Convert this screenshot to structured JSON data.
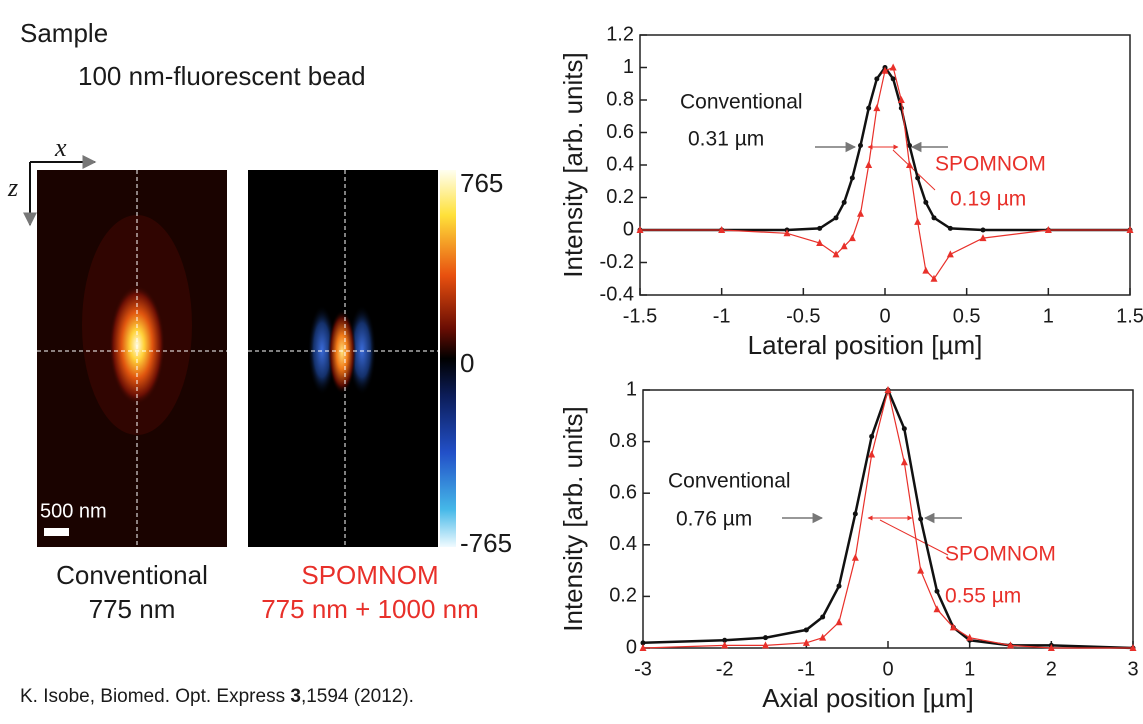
{
  "sample_title": "Sample",
  "sample_desc": "100 nm-fluorescent bead",
  "axis_x": "x",
  "axis_z": "z",
  "scale_bar": "500 nm",
  "colorbar": {
    "ticks": [
      765,
      0,
      -765
    ]
  },
  "images": [
    {
      "label": "Conventional",
      "wavelength": "775 nm",
      "color": "#1a1a1a"
    },
    {
      "label": "SPOMNOM",
      "wavelength": "775 nm + 1000 nm",
      "color": "#e8302a"
    }
  ],
  "citation": {
    "source": "K. Isobe, Biomed. Opt. Express",
    "volume": "3",
    "pages": ",1594 (2012)."
  },
  "chart_data": [
    {
      "type": "line",
      "xlabel": "Lateral position [µm]",
      "ylabel": "Intensity [arb. units]",
      "x": [
        -1.5,
        -1,
        -0.6,
        -0.4,
        -0.3,
        -0.25,
        -0.2,
        -0.15,
        -0.1,
        -0.05,
        0,
        0.05,
        0.1,
        0.15,
        0.2,
        0.25,
        0.3,
        0.4,
        0.6,
        1,
        1.5
      ],
      "xlim": [
        -1.5,
        1.5
      ],
      "xticks": [
        -1.5,
        -1,
        -0.5,
        0,
        0.5,
        1,
        1.5
      ],
      "ylim": [
        -0.4,
        1.2
      ],
      "yticks": [
        -0.4,
        -0.2,
        0,
        0.2,
        0.4,
        0.6,
        0.8,
        1,
        1.2
      ],
      "series": [
        {
          "name": "Conventional",
          "color": "#111111",
          "marker": "circle",
          "values": [
            0,
            0,
            0,
            0.01,
            0.075,
            0.17,
            0.32,
            0.52,
            0.75,
            0.93,
            1,
            0.93,
            0.75,
            0.52,
            0.32,
            0.17,
            0.075,
            0.01,
            0,
            0,
            0
          ]
        },
        {
          "name": "SPOMNOM",
          "color": "#e8302a",
          "marker": "triangle",
          "values": [
            0,
            0,
            -0.02,
            -0.08,
            -0.15,
            -0.1,
            -0.05,
            0.1,
            0.4,
            0.75,
            0.98,
            1,
            0.8,
            0.4,
            0.05,
            -0.25,
            -0.3,
            -0.15,
            -0.05,
            0,
            0
          ]
        }
      ],
      "annotations": [
        {
          "text": "Conventional",
          "color": "#1a1a1a"
        },
        {
          "text": "0.31 µm",
          "color": "#1a1a1a"
        },
        {
          "text": "SPOMNOM",
          "color": "#e8302a"
        },
        {
          "text": "0.19 µm",
          "color": "#e8302a"
        }
      ]
    },
    {
      "type": "line",
      "xlabel": "Axial position [µm]",
      "ylabel": "Intensity [arb. units]",
      "x": [
        -3,
        -2,
        -1.5,
        -1,
        -0.8,
        -0.6,
        -0.4,
        -0.2,
        0,
        0.2,
        0.4,
        0.6,
        0.8,
        1,
        1.5,
        2,
        3
      ],
      "xlim": [
        -3,
        3
      ],
      "xticks": [
        -3,
        -2,
        -1,
        0,
        1,
        2,
        3
      ],
      "ylim": [
        0,
        1
      ],
      "yticks": [
        0,
        0.2,
        0.4,
        0.6,
        0.8,
        1
      ],
      "series": [
        {
          "name": "Conventional",
          "color": "#111111",
          "marker": "circle",
          "values": [
            0.02,
            0.03,
            0.04,
            0.07,
            0.12,
            0.24,
            0.52,
            0.82,
            1,
            0.85,
            0.5,
            0.22,
            0.08,
            0.03,
            0.01,
            0.01,
            0
          ]
        },
        {
          "name": "SPOMNOM",
          "color": "#e8302a",
          "marker": "triangle",
          "values": [
            0,
            0.01,
            0.01,
            0.02,
            0.04,
            0.1,
            0.35,
            0.75,
            1,
            0.72,
            0.3,
            0.15,
            0.08,
            0.04,
            0.01,
            0,
            0
          ]
        }
      ],
      "annotations": [
        {
          "text": "Conventional",
          "color": "#1a1a1a"
        },
        {
          "text": "0.76 µm",
          "color": "#1a1a1a"
        },
        {
          "text": "SPOMNOM",
          "color": "#e8302a"
        },
        {
          "text": "0.55 µm",
          "color": "#e8302a"
        }
      ]
    }
  ]
}
